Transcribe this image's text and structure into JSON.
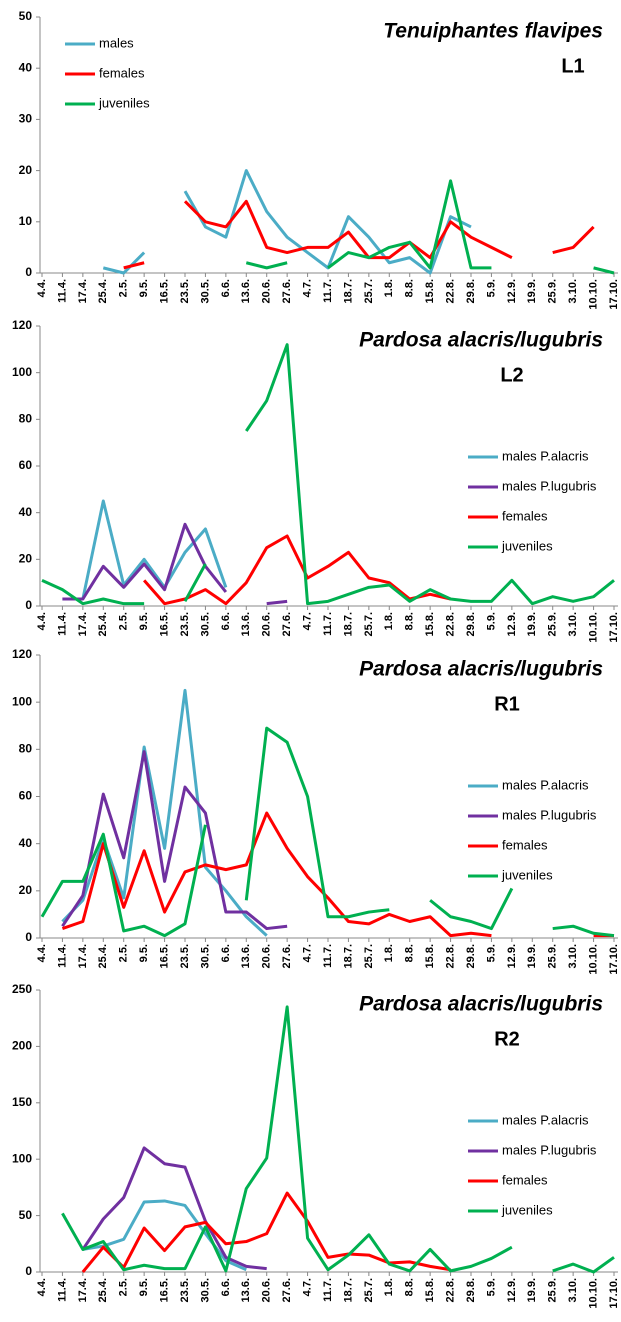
{
  "chart_data": [
    {
      "type": "line",
      "title": "Tenuiphantes flavipes",
      "subtitle": "L1",
      "categories": [
        "4.4.",
        "11.4.",
        "17.4.",
        "25.4.",
        "2.5.",
        "9.5.",
        "16.5.",
        "23.5.",
        "30.5.",
        "6.6.",
        "13.6.",
        "20.6.",
        "27.6.",
        "4.7.",
        "11.7.",
        "18.7.",
        "25.7.",
        "1.8.",
        "8.8.",
        "15.8.",
        "22.8.",
        "29.8.",
        "5.9.",
        "12.9.",
        "19.9.",
        "25.9.",
        "3.10.",
        "10.10.",
        "17.10."
      ],
      "series": [
        {
          "name": "males",
          "color": "#4bacc6",
          "values": [
            null,
            null,
            null,
            1,
            0,
            4,
            null,
            16,
            9,
            7,
            20,
            12,
            7,
            4,
            1,
            11,
            7,
            2,
            3,
            0,
            11,
            9,
            null,
            null,
            null,
            null,
            null,
            null,
            null
          ]
        },
        {
          "name": "females",
          "color": "#ff0000",
          "values": [
            null,
            null,
            null,
            null,
            1,
            2,
            null,
            14,
            10,
            9,
            14,
            5,
            4,
            5,
            5,
            8,
            3,
            3,
            6,
            3,
            10,
            7,
            5,
            3,
            null,
            4,
            5,
            9,
            null
          ]
        },
        {
          "name": "juveniles",
          "color": "#00b050",
          "values": [
            null,
            null,
            null,
            null,
            null,
            null,
            null,
            null,
            null,
            null,
            2,
            1,
            2,
            null,
            1,
            4,
            3,
            5,
            6,
            1,
            18,
            1,
            1,
            null,
            null,
            null,
            null,
            1,
            0
          ]
        }
      ],
      "ylim": [
        0,
        50
      ],
      "yticks": [
        0,
        10,
        20,
        30,
        40,
        50
      ],
      "legend_position": "upper left"
    },
    {
      "type": "line",
      "title": "Pardosa alacris/lugubris",
      "subtitle": "L2",
      "categories": [
        "4.4.",
        "11.4.",
        "17.4.",
        "25.4.",
        "2.5.",
        "9.5.",
        "16.5.",
        "23.5.",
        "30.5.",
        "6.6.",
        "13.6.",
        "20.6.",
        "27.6.",
        "4.7.",
        "11.7.",
        "18.7.",
        "25.7.",
        "1.8.",
        "8.8.",
        "15.8.",
        "22.8.",
        "29.8.",
        "5.9.",
        "12.9.",
        "19.9.",
        "25.9.",
        "3.10.",
        "10.10.",
        "17.10."
      ],
      "series": [
        {
          "name": "males P.alacris",
          "color": "#4bacc6",
          "values": [
            null,
            3,
            3,
            45,
            9,
            20,
            8,
            23,
            33,
            8,
            null,
            null,
            null,
            null,
            null,
            null,
            null,
            null,
            null,
            null,
            null,
            null,
            null,
            null,
            null,
            null,
            null,
            null,
            null
          ]
        },
        {
          "name": "males P.lugubris",
          "color": "#7030a0",
          "values": [
            null,
            3,
            3,
            17,
            8,
            18,
            7,
            35,
            17,
            6,
            null,
            1,
            2,
            null,
            null,
            null,
            null,
            null,
            null,
            null,
            null,
            null,
            null,
            null,
            null,
            null,
            null,
            null,
            null
          ]
        },
        {
          "name": "females",
          "color": "#ff0000",
          "values": [
            null,
            null,
            null,
            null,
            null,
            11,
            1,
            3,
            7,
            1,
            10,
            25,
            30,
            12,
            17,
            23,
            12,
            10,
            3,
            5,
            3,
            null,
            null,
            null,
            null,
            null,
            null,
            null,
            null
          ]
        },
        {
          "name": "juveniles",
          "color": "#00b050",
          "values": [
            11,
            7,
            1,
            3,
            1,
            1,
            null,
            2,
            18,
            null,
            75,
            88,
            112,
            1,
            2,
            5,
            8,
            9,
            2,
            7,
            3,
            2,
            2,
            11,
            1,
            4,
            2,
            4,
            11
          ]
        }
      ],
      "ylim": [
        0,
        120
      ],
      "yticks": [
        0,
        20,
        40,
        60,
        80,
        100,
        120
      ],
      "legend_position": "right"
    },
    {
      "type": "line",
      "title": "Pardosa alacris/lugubris",
      "subtitle": "R1",
      "categories": [
        "4.4.",
        "11.4.",
        "17.4.",
        "25.4.",
        "2.5.",
        "9.5.",
        "16.5.",
        "23.5.",
        "30.5.",
        "6.6.",
        "13.6.",
        "20.6.",
        "27.6.",
        "4.7.",
        "11.7.",
        "18.7.",
        "25.7.",
        "1.8.",
        "8.8.",
        "15.8.",
        "22.8.",
        "29.8.",
        "5.9.",
        "12.9.",
        "19.9.",
        "25.9.",
        "3.10.",
        "10.10.",
        "17.10."
      ],
      "series": [
        {
          "name": "males P.alacris",
          "color": "#4bacc6",
          "values": [
            null,
            7,
            16,
            42,
            17,
            81,
            38,
            105,
            30,
            20,
            9,
            1,
            null,
            null,
            null,
            null,
            null,
            null,
            null,
            null,
            null,
            null,
            null,
            null,
            null,
            null,
            null,
            null,
            null
          ]
        },
        {
          "name": "males P.lugubris",
          "color": "#7030a0",
          "values": [
            null,
            5,
            18,
            61,
            34,
            79,
            24,
            64,
            53,
            11,
            11,
            4,
            5,
            null,
            null,
            null,
            null,
            null,
            null,
            null,
            null,
            null,
            null,
            null,
            null,
            null,
            null,
            null,
            null
          ]
        },
        {
          "name": "females",
          "color": "#ff0000",
          "values": [
            null,
            4,
            7,
            40,
            13,
            37,
            11,
            28,
            31,
            29,
            31,
            53,
            38,
            26,
            17,
            7,
            6,
            10,
            7,
            9,
            1,
            2,
            1,
            null,
            null,
            null,
            null,
            1,
            1
          ]
        },
        {
          "name": "juveniles",
          "color": "#00b050",
          "values": [
            9,
            24,
            24,
            44,
            3,
            5,
            1,
            6,
            48,
            null,
            16,
            89,
            83,
            60,
            9,
            9,
            11,
            12,
            null,
            16,
            9,
            7,
            4,
            21,
            null,
            4,
            5,
            2,
            1
          ]
        }
      ],
      "ylim": [
        0,
        120
      ],
      "yticks": [
        0,
        20,
        40,
        60,
        80,
        100,
        120
      ],
      "legend_position": "right"
    },
    {
      "type": "line",
      "title": "Pardosa alacris/lugubris",
      "subtitle": "R2",
      "categories": [
        "4.4.",
        "11.4.",
        "17.4.",
        "25.4.",
        "2.5.",
        "9.5.",
        "16.5.",
        "23.5.",
        "30.5.",
        "6.6.",
        "13.6.",
        "20.6.",
        "27.6.",
        "4.7.",
        "11.7.",
        "18.7.",
        "25.7.",
        "1.8.",
        "8.8.",
        "15.8.",
        "22.8.",
        "29.8.",
        "5.9.",
        "12.9.",
        "19.9.",
        "25.9.",
        "3.10.",
        "10.10.",
        "17.10."
      ],
      "series": [
        {
          "name": "males P.alacris",
          "color": "#4bacc6",
          "values": [
            null,
            null,
            20,
            23,
            29,
            62,
            63,
            59,
            34,
            10,
            2,
            null,
            null,
            null,
            null,
            null,
            null,
            null,
            null,
            null,
            null,
            null,
            null,
            null,
            null,
            null,
            null,
            null,
            null
          ]
        },
        {
          "name": "males P.lugubris",
          "color": "#7030a0",
          "values": [
            null,
            null,
            20,
            47,
            66,
            110,
            96,
            93,
            45,
            13,
            5,
            3,
            null,
            null,
            null,
            null,
            null,
            null,
            null,
            null,
            null,
            null,
            null,
            null,
            null,
            null,
            null,
            null,
            null
          ]
        },
        {
          "name": "females",
          "color": "#ff0000",
          "values": [
            null,
            null,
            0,
            22,
            4,
            39,
            19,
            40,
            44,
            25,
            27,
            34,
            70,
            45,
            13,
            16,
            15,
            8,
            9,
            5,
            2,
            null,
            null,
            null,
            null,
            null,
            null,
            null,
            null
          ]
        },
        {
          "name": "juveniles",
          "color": "#00b050",
          "values": [
            null,
            52,
            20,
            27,
            2,
            6,
            3,
            3,
            40,
            1,
            74,
            101,
            235,
            30,
            2,
            15,
            33,
            7,
            1,
            20,
            1,
            5,
            12,
            22,
            null,
            1,
            7,
            0,
            13
          ]
        }
      ],
      "ylim": [
        0,
        250
      ],
      "yticks": [
        0,
        50,
        100,
        150,
        200,
        250
      ],
      "legend_position": "right"
    }
  ]
}
